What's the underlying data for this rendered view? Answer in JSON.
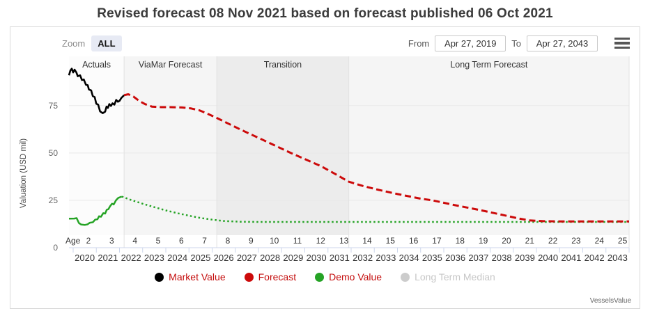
{
  "title": "Revised forecast 08 Nov 2021 based on forecast published 06 Oct 2021",
  "toolbar": {
    "zoom_label": "Zoom",
    "zoom_all": "ALL",
    "from_label": "From",
    "from_value": "Apr 27, 2019",
    "to_label": "To",
    "to_value": "Apr 27, 2043",
    "menu_icon": "hamburger-icon"
  },
  "watermark": "VesselsValue",
  "colors": {
    "market_value": "#000000",
    "forecast": "#cc0a0a",
    "demo_value": "#25a325",
    "disabled": "#cccccc",
    "legend_text": "#c40d0d",
    "axis_line": "#ccd6eb",
    "gridline": "#e9e9e9"
  },
  "legend": [
    {
      "label": "Market Value",
      "marker_color": "#000000",
      "text_color": "#c40d0d",
      "enabled": true
    },
    {
      "label": "Forecast",
      "marker_color": "#cc0a0a",
      "text_color": "#c40d0d",
      "enabled": true
    },
    {
      "label": "Demo Value",
      "marker_color": "#25a325",
      "text_color": "#c40d0d",
      "enabled": true
    },
    {
      "label": "Long Term Median",
      "marker_color": "#cccccc",
      "text_color": "#c7c7c7",
      "enabled": false
    }
  ],
  "chart_data": {
    "type": "line",
    "ylabel": "Valuation (USD mil)",
    "age_axis_label": "Age",
    "y_ticks": [
      0,
      25,
      50,
      75
    ],
    "ylim": [
      0,
      101
    ],
    "xlim": [
      2019.82,
      2044
    ],
    "age_ticks": [
      2,
      3,
      4,
      5,
      6,
      7,
      8,
      9,
      10,
      11,
      12,
      13,
      14,
      15,
      16,
      17,
      18,
      19,
      20,
      21,
      22,
      23,
      24,
      25
    ],
    "year_ticks": [
      2020,
      2021,
      2022,
      2023,
      2024,
      2025,
      2026,
      2027,
      2028,
      2029,
      2030,
      2031,
      2032,
      2033,
      2034,
      2035,
      2036,
      2037,
      2038,
      2039,
      2040,
      2041,
      2042,
      2043
    ],
    "bands": [
      {
        "label": "Actuals",
        "from": 2019.82,
        "to": 2022.2,
        "color": "#fcfcfc"
      },
      {
        "label": "ViaMar Forecast",
        "from": 2022.2,
        "to": 2026.2,
        "color": "#f5f5f5"
      },
      {
        "label": "Transition",
        "from": 2026.2,
        "to": 2031.9,
        "color": "#ececec"
      },
      {
        "label": "Long Term Forecast",
        "from": 2031.9,
        "to": 2044,
        "color": "#f5f5f5"
      }
    ],
    "series": [
      {
        "name": "Market Value",
        "color": "#000000",
        "style": "solid",
        "width": 2.6,
        "points": [
          [
            2019.82,
            91
          ],
          [
            2019.88,
            93.5
          ],
          [
            2019.94,
            94.5
          ],
          [
            2020.0,
            92.5
          ],
          [
            2020.06,
            94
          ],
          [
            2020.14,
            92.5
          ],
          [
            2020.2,
            90.5
          ],
          [
            2020.3,
            91
          ],
          [
            2020.38,
            88.5
          ],
          [
            2020.46,
            88.8
          ],
          [
            2020.55,
            86
          ],
          [
            2020.63,
            85.8
          ],
          [
            2020.68,
            83.5
          ],
          [
            2020.78,
            83
          ],
          [
            2020.85,
            80
          ],
          [
            2020.93,
            79.5
          ],
          [
            2021.0,
            76
          ],
          [
            2021.08,
            75.5
          ],
          [
            2021.16,
            72
          ],
          [
            2021.28,
            71
          ],
          [
            2021.38,
            71.8
          ],
          [
            2021.44,
            74.5
          ],
          [
            2021.5,
            73.8
          ],
          [
            2021.56,
            75.8
          ],
          [
            2021.63,
            74.8
          ],
          [
            2021.7,
            76.2
          ],
          [
            2021.78,
            75.5
          ],
          [
            2021.86,
            78
          ],
          [
            2021.93,
            77
          ],
          [
            2022.0,
            77.5
          ],
          [
            2022.08,
            79
          ],
          [
            2022.2,
            80.5
          ]
        ]
      },
      {
        "name": "Demo Value (actual)",
        "color": "#25a325",
        "style": "solid",
        "width": 2.5,
        "points": [
          [
            2019.82,
            15.3
          ],
          [
            2020.05,
            15.4
          ],
          [
            2020.15,
            15.6
          ],
          [
            2020.25,
            13
          ],
          [
            2020.35,
            12.2
          ],
          [
            2020.5,
            12
          ],
          [
            2020.62,
            12.3
          ],
          [
            2020.72,
            13.2
          ],
          [
            2020.85,
            13.4
          ],
          [
            2020.95,
            14.8
          ],
          [
            2021.05,
            15
          ],
          [
            2021.12,
            16.6
          ],
          [
            2021.2,
            16.3
          ],
          [
            2021.3,
            18.2
          ],
          [
            2021.38,
            18
          ],
          [
            2021.45,
            20
          ],
          [
            2021.52,
            20.3
          ],
          [
            2021.6,
            22
          ],
          [
            2021.68,
            23.2
          ],
          [
            2021.75,
            22.8
          ],
          [
            2021.85,
            25
          ],
          [
            2021.95,
            26.3
          ],
          [
            2022.1,
            27
          ]
        ]
      },
      {
        "name": "Demo Value (forecast)",
        "color": "#25a325",
        "style": "dotted",
        "width": 2.5,
        "points": [
          [
            2022.1,
            27
          ],
          [
            2022.5,
            25.2
          ],
          [
            2023.0,
            23.2
          ],
          [
            2023.5,
            21.4
          ],
          [
            2024.0,
            19.7
          ],
          [
            2024.5,
            18.2
          ],
          [
            2025.0,
            16.9
          ],
          [
            2025.5,
            15.7
          ],
          [
            2026.0,
            14.8
          ],
          [
            2026.5,
            14.1
          ],
          [
            2027.2,
            13.7
          ],
          [
            2028.0,
            13.6
          ],
          [
            2030.0,
            13.6
          ],
          [
            2034.0,
            13.6
          ],
          [
            2038.0,
            13.6
          ],
          [
            2041.0,
            13.6
          ],
          [
            2044.0,
            13.6
          ]
        ]
      },
      {
        "name": "Forecast",
        "color": "#cc0a0a",
        "style": "dashed",
        "width": 3,
        "points": [
          [
            2022.2,
            80.5
          ],
          [
            2022.38,
            81
          ],
          [
            2022.6,
            79.8
          ],
          [
            2022.85,
            77.5
          ],
          [
            2023.1,
            75.8
          ],
          [
            2023.4,
            74.5
          ],
          [
            2023.8,
            74.2
          ],
          [
            2024.2,
            74.2
          ],
          [
            2024.7,
            74
          ],
          [
            2025.1,
            73.5
          ],
          [
            2025.45,
            72.5
          ],
          [
            2025.75,
            71
          ],
          [
            2026.2,
            68.5
          ],
          [
            2026.7,
            65.5
          ],
          [
            2027.2,
            62.5
          ],
          [
            2028.0,
            58
          ],
          [
            2028.7,
            54
          ],
          [
            2029.4,
            50
          ],
          [
            2030.0,
            46.8
          ],
          [
            2030.7,
            43
          ],
          [
            2031.3,
            39
          ],
          [
            2031.9,
            34.8
          ],
          [
            2032.5,
            32.6
          ],
          [
            2033.2,
            30.5
          ],
          [
            2034.0,
            28.3
          ],
          [
            2035.0,
            25.9
          ],
          [
            2035.5,
            25
          ],
          [
            2036.5,
            22.4
          ],
          [
            2037.5,
            20
          ],
          [
            2038.5,
            17.4
          ],
          [
            2039.2,
            15.5
          ],
          [
            2039.7,
            14.4
          ],
          [
            2040.3,
            14.0
          ],
          [
            2041.0,
            13.9
          ],
          [
            2042.0,
            13.9
          ],
          [
            2043.0,
            13.9
          ],
          [
            2044.0,
            13.9
          ]
        ]
      }
    ]
  }
}
